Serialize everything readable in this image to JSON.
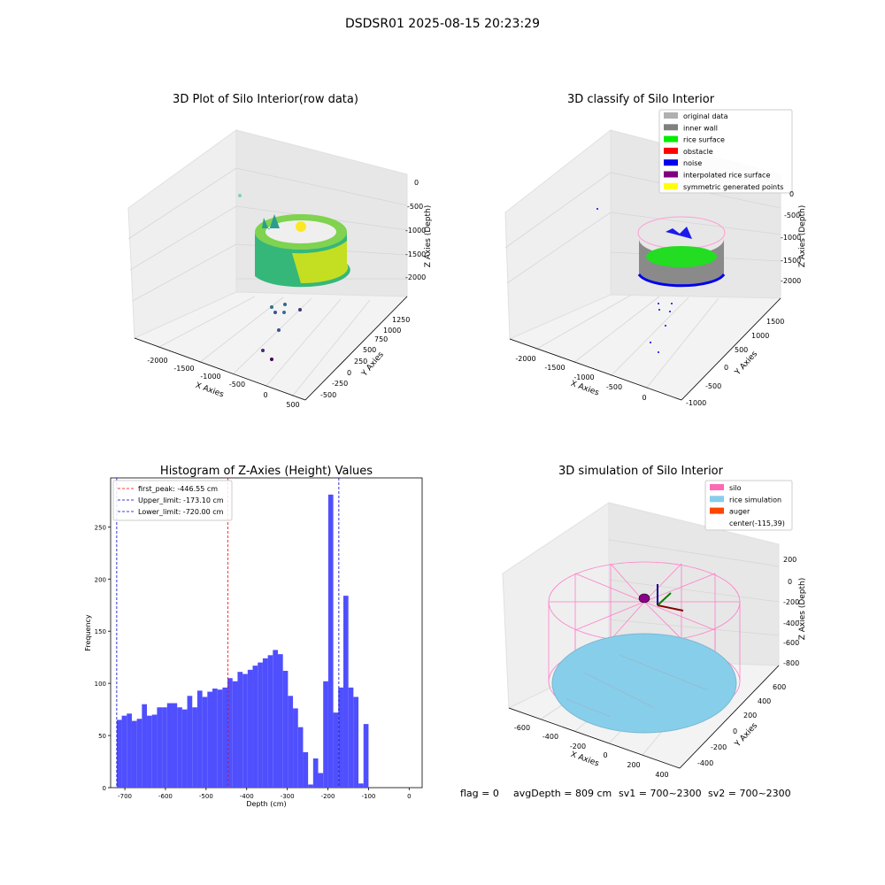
{
  "figure": {
    "suptitle": "DSDSR01 2025-08-15 20:23:29"
  },
  "footer": {
    "flag": "flag = 0",
    "avg_depth": "avgDepth = 809 cm",
    "sv1": "sv1 = 700~2300",
    "sv2": "sv2 = 700~2300"
  },
  "chart_data": [
    {
      "type": "scatter",
      "projection": "3d",
      "title": "3D Plot of Silo Interior(row data)",
      "xlabel": "X Axies",
      "ylabel": "Y Axies",
      "zlabel": "Z Axies (Depth)",
      "x_ticks": [
        "-2000",
        "-1500",
        "-1000",
        "-500",
        "0",
        "500"
      ],
      "y_ticks": [
        "-500",
        "-250",
        "0",
        "250",
        "500",
        "750",
        "1000",
        "1250"
      ],
      "z_ticks": [
        "0",
        "-500",
        "-1000",
        "-1500",
        "-2000"
      ],
      "colormap": "viridis",
      "grid": true
    },
    {
      "type": "scatter",
      "projection": "3d",
      "title": "3D classify of Silo Interior",
      "xlabel": "X Axies",
      "ylabel": "Y Axies",
      "zlabel": "Z Axies (Depth)",
      "x_ticks": [
        "-2000",
        "-1500",
        "-1000",
        "-500",
        "0"
      ],
      "y_ticks": [
        "-1000",
        "-500",
        "0",
        "500",
        "1000",
        "1500"
      ],
      "z_ticks": [
        "0",
        "-500",
        "-1000",
        "-1500",
        "-2000"
      ],
      "legend_position": "top-right",
      "legend": [
        {
          "label": "original data",
          "color": "#b0b0b0"
        },
        {
          "label": "inner wall",
          "color": "#808080"
        },
        {
          "label": "rice surface",
          "color": "#00ee00"
        },
        {
          "label": "obstacle",
          "color": "#ff0000"
        },
        {
          "label": "noise",
          "color": "#0000ee"
        },
        {
          "label": "interpolated rice surface",
          "color": "#800080"
        },
        {
          "label": "symmetric generated points",
          "color": "#ffff00"
        }
      ],
      "grid": true
    },
    {
      "type": "bar",
      "title": "Histogram of Z-Axies (Height) Values",
      "xlabel": "Depth (cm)",
      "ylabel": "Frequency",
      "bin_start": -720,
      "bin_width": 12.4,
      "counts": [
        65,
        69,
        71,
        64,
        66,
        80,
        69,
        70,
        77,
        77,
        81,
        81,
        77,
        75,
        88,
        77,
        93,
        87,
        92,
        95,
        94,
        96,
        105,
        102,
        111,
        109,
        113,
        117,
        120,
        124,
        127,
        132,
        128,
        112,
        88,
        76,
        58,
        34,
        3,
        28,
        14,
        102,
        281,
        72,
        96,
        184,
        96,
        87,
        4,
        61
      ],
      "xlim": [
        -735,
        32
      ],
      "ylim": [
        0,
        297
      ],
      "x_ticks": [
        -700,
        -600,
        -500,
        -400,
        -300,
        -200,
        -100,
        0
      ],
      "y_ticks": [
        0,
        50,
        100,
        150,
        200,
        250
      ],
      "bar_color": "#4f4ffe",
      "vlines": [
        {
          "label": "first_peak: -446.55 cm",
          "x": -446.55,
          "color": "#ff0000"
        },
        {
          "label": "Upper_limit: -173.10 cm",
          "x": -173.1,
          "color": "#0000cc"
        },
        {
          "label": "Lower_limit: -720.00 cm",
          "x": -720.0,
          "color": "#0000cc"
        }
      ],
      "legend_position": "top-left"
    },
    {
      "type": "scatter",
      "projection": "3d",
      "title": "3D simulation of Silo Interior",
      "xlabel": "X Axies",
      "ylabel": "Y Axies",
      "zlabel": "Z Axies (Depth)",
      "x_ticks": [
        "-600",
        "-400",
        "-200",
        "0",
        "200",
        "400"
      ],
      "y_ticks": [
        "-400",
        "-200",
        "0",
        "200",
        "400",
        "600"
      ],
      "z_ticks": [
        "200",
        "0",
        "-200",
        "-400",
        "-600",
        "-800"
      ],
      "legend_position": "top-right",
      "legend": [
        {
          "label": "silo",
          "color": "#ff69b4"
        },
        {
          "label": "rice simulation",
          "color": "#87ceeb"
        },
        {
          "label": "auger",
          "color": "#ff4500"
        },
        {
          "label": "center(-115,39)",
          "color": ""
        }
      ],
      "grid": true
    }
  ]
}
